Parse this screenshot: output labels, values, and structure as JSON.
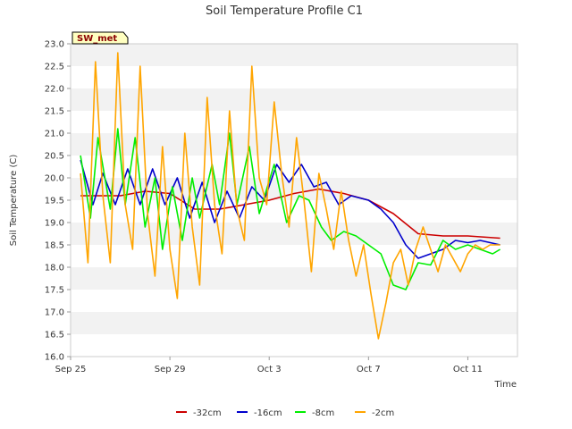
{
  "chart_data": {
    "type": "line",
    "title": "Soil Temperature Profile C1",
    "xlabel": "Time",
    "ylabel": "Soil Temperature (C)",
    "badge": "SW_met",
    "ylim": [
      16.0,
      23.0
    ],
    "yticks": [
      "16.0",
      "16.5",
      "17.0",
      "17.5",
      "18.0",
      "18.5",
      "19.0",
      "19.5",
      "20.0",
      "20.5",
      "21.0",
      "21.5",
      "22.0",
      "22.5",
      "23.0"
    ],
    "xlim": [
      0,
      18
    ],
    "xticks": [
      {
        "label": "Sep 25",
        "value": 0
      },
      {
        "label": "Sep 29",
        "value": 4
      },
      {
        "label": "Oct 3",
        "value": 8
      },
      {
        "label": "Oct 7",
        "value": 12
      },
      {
        "label": "Oct 11",
        "value": 16
      }
    ],
    "legend_position": "bottom",
    "grid": true,
    "series": [
      {
        "name": "-32cm",
        "color": "#cc0000",
        "x": [
          0.4,
          1,
          2,
          3,
          4,
          5,
          6,
          7,
          8,
          9,
          10,
          11,
          12,
          13,
          14,
          15,
          16,
          17.3
        ],
        "y": [
          19.6,
          19.6,
          19.6,
          19.7,
          19.65,
          19.3,
          19.3,
          19.4,
          19.5,
          19.65,
          19.75,
          19.65,
          19.5,
          19.2,
          18.75,
          18.7,
          18.7,
          18.65
        ]
      },
      {
        "name": "-16cm",
        "color": "#0000cc",
        "x": [
          0.4,
          0.9,
          1.3,
          1.8,
          2.3,
          2.8,
          3.3,
          3.8,
          4.3,
          4.8,
          5.3,
          5.8,
          6.3,
          6.8,
          7.3,
          7.8,
          8.3,
          8.8,
          9.3,
          9.8,
          10.3,
          10.8,
          11.3,
          12,
          12.5,
          13,
          13.5,
          14,
          14.5,
          15,
          15.5,
          16,
          16.5,
          17.3
        ],
        "y": [
          20.4,
          19.4,
          20.1,
          19.4,
          20.2,
          19.4,
          20.2,
          19.4,
          20.0,
          19.1,
          19.9,
          19.0,
          19.7,
          19.1,
          19.8,
          19.5,
          20.3,
          19.9,
          20.3,
          19.8,
          19.9,
          19.4,
          19.6,
          19.5,
          19.3,
          19.0,
          18.5,
          18.2,
          18.3,
          18.4,
          18.6,
          18.55,
          18.6,
          18.5
        ]
      },
      {
        "name": "-8cm",
        "color": "#00ee00",
        "x": [
          0.4,
          0.8,
          1.1,
          1.6,
          1.9,
          2.2,
          2.6,
          3.0,
          3.4,
          3.7,
          4.1,
          4.5,
          4.9,
          5.2,
          5.7,
          6.0,
          6.4,
          6.7,
          7.2,
          7.6,
          8.2,
          8.7,
          9.2,
          9.6,
          10.1,
          10.5,
          11.0,
          11.5,
          12.0,
          12.5,
          13.0,
          13.5,
          14.0,
          14.5,
          15.0,
          15.5,
          16.0,
          16.5,
          17.0,
          17.3
        ],
        "y": [
          20.5,
          19.1,
          20.9,
          19.3,
          21.1,
          19.4,
          20.9,
          18.9,
          20.0,
          18.4,
          19.8,
          18.6,
          20.0,
          19.1,
          20.3,
          19.4,
          21.0,
          19.4,
          20.7,
          19.2,
          20.3,
          19.0,
          19.6,
          19.5,
          18.9,
          18.6,
          18.8,
          18.7,
          18.5,
          18.3,
          17.6,
          17.5,
          18.1,
          18.05,
          18.6,
          18.4,
          18.5,
          18.4,
          18.3,
          18.4
        ]
      },
      {
        "name": "-2cm",
        "color": "#ffa500",
        "x": [
          0.4,
          0.7,
          1.0,
          1.3,
          1.6,
          1.9,
          2.2,
          2.5,
          2.8,
          3.1,
          3.4,
          3.7,
          4.0,
          4.3,
          4.6,
          4.9,
          5.2,
          5.5,
          5.8,
          6.1,
          6.4,
          6.7,
          7.0,
          7.3,
          7.6,
          7.9,
          8.2,
          8.5,
          8.8,
          9.1,
          9.4,
          9.7,
          10.0,
          10.3,
          10.6,
          10.9,
          11.2,
          11.5,
          11.8,
          12.1,
          12.4,
          12.7,
          13.0,
          13.3,
          13.6,
          13.9,
          14.2,
          14.5,
          14.8,
          15.1,
          15.4,
          15.7,
          16.0,
          16.3,
          16.6,
          16.9,
          17.3
        ],
        "y": [
          20.1,
          18.1,
          22.6,
          19.6,
          18.1,
          22.8,
          19.4,
          18.4,
          22.5,
          19.2,
          17.8,
          20.7,
          18.4,
          17.3,
          21.0,
          18.9,
          17.6,
          21.8,
          19.4,
          18.3,
          21.5,
          19.3,
          18.6,
          22.5,
          20.0,
          19.4,
          21.7,
          20.1,
          18.9,
          20.9,
          19.5,
          17.9,
          20.1,
          19.3,
          18.4,
          19.7,
          18.6,
          17.8,
          18.5,
          17.4,
          16.4,
          17.2,
          18.1,
          18.4,
          17.6,
          18.4,
          18.9,
          18.4,
          17.9,
          18.5,
          18.2,
          17.9,
          18.3,
          18.5,
          18.4,
          18.5,
          18.5
        ]
      }
    ]
  }
}
